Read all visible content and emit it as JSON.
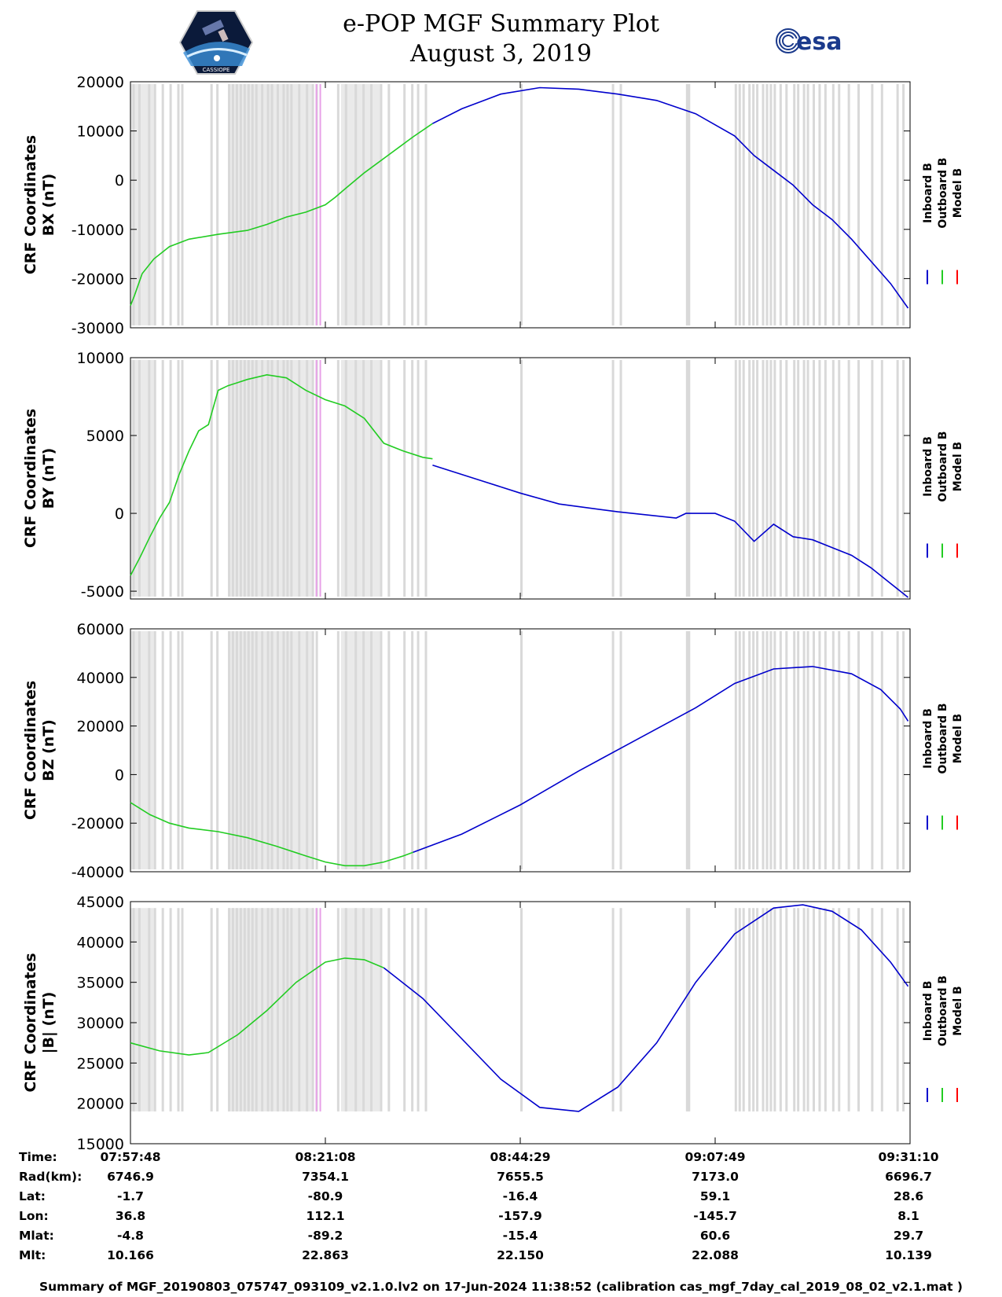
{
  "header": {
    "title_line1": "e-POP MGF Summary Plot",
    "title_line2": "August 3, 2019",
    "logo_left": "CASSIOPE",
    "logo_right": "esa"
  },
  "colors": {
    "inboard": "#0000cc",
    "outboard": "#22cc22",
    "model": "#ff0000",
    "gap": "#d9d9d9",
    "gap_magenta": "#e8a0e8"
  },
  "chart_data": [
    {
      "type": "line",
      "title": "",
      "ylabel_line1": "CRF Coordinates",
      "ylabel_line2": "BX (nT)",
      "ylim": [
        -30000,
        20000
      ],
      "yticks": [
        "20000",
        "10000",
        "0",
        "-10000",
        "-20000",
        "-30000"
      ],
      "yticks_values": [
        20000,
        10000,
        0,
        -10000,
        -20000,
        -30000
      ],
      "legend": [
        "Inboard B",
        "Outboard B",
        "Model B"
      ],
      "series": [
        {
          "name": "Outboard B",
          "x": [
            0,
            0.02,
            0.06,
            0.12,
            0.2,
            0.3,
            0.45,
            0.6,
            0.7,
            0.8,
            0.9,
            1.0,
            1.05,
            1.1,
            1.2,
            1.32,
            1.45,
            1.55
          ],
          "y": [
            -25500,
            -23500,
            -19000,
            -16000,
            -13500,
            -12000,
            -11000,
            -10200,
            -9000,
            -7500,
            -6500,
            -5000,
            -3500,
            -1800,
            1500,
            5000,
            8800,
            11500
          ]
        },
        {
          "name": "Inboard B",
          "x": [
            1.55,
            1.7,
            1.9,
            2.1,
            2.3,
            2.5,
            2.7,
            2.9,
            3.1,
            3.2,
            3.3,
            3.4,
            3.5,
            3.6,
            3.7,
            3.8,
            3.9,
            3.99
          ],
          "y": [
            11500,
            14500,
            17500,
            18800,
            18500,
            17500,
            16200,
            13500,
            9000,
            5000,
            2000,
            -1000,
            -5000,
            -8000,
            -12000,
            -16500,
            -21000,
            -26000
          ]
        }
      ]
    },
    {
      "type": "line",
      "ylabel_line1": "CRF Coordinates",
      "ylabel_line2": "BY (nT)",
      "ylim": [
        -5500,
        10000
      ],
      "yticks": [
        "10000",
        "5000",
        "0",
        "-5000"
      ],
      "yticks_values": [
        10000,
        5000,
        0,
        -5000
      ],
      "legend": [
        "Inboard B",
        "Outboard B",
        "Model B"
      ],
      "series": [
        {
          "name": "Outboard B",
          "x": [
            0,
            0.05,
            0.1,
            0.15,
            0.2,
            0.25,
            0.3,
            0.35,
            0.4,
            0.45,
            0.5,
            0.55,
            0.6,
            0.7,
            0.8,
            0.9,
            1.0,
            1.1,
            1.2,
            1.3,
            1.4,
            1.5,
            1.55
          ],
          "y": [
            -4000,
            -2800,
            -1500,
            -300,
            700,
            2500,
            4000,
            5300,
            5700,
            7900,
            8200,
            8400,
            8600,
            8900,
            8700,
            7900,
            7300,
            6900,
            6100,
            4500,
            4000,
            3600,
            3500
          ]
        },
        {
          "name": "Inboard B",
          "x": [
            1.55,
            1.8,
            2.0,
            2.2,
            2.5,
            2.8,
            2.85,
            3.0,
            3.1,
            3.2,
            3.3,
            3.4,
            3.5,
            3.6,
            3.7,
            3.8,
            3.9,
            3.99
          ],
          "y": [
            3100,
            2100,
            1300,
            600,
            100,
            -300,
            0,
            0,
            -500,
            -1800,
            -700,
            -1500,
            -1700,
            -2200,
            -2700,
            -3500,
            -4500,
            -5400
          ]
        }
      ]
    },
    {
      "type": "line",
      "ylabel_line1": "CRF Coordinates",
      "ylabel_line2": "BZ (nT)",
      "ylim": [
        -40000,
        60000
      ],
      "yticks": [
        "60000",
        "40000",
        "20000",
        "0",
        "-20000",
        "-40000"
      ],
      "yticks_values": [
        60000,
        40000,
        20000,
        0,
        -20000,
        -40000
      ],
      "legend": [
        "Inboard B",
        "Outboard B",
        "Model B"
      ],
      "series": [
        {
          "name": "Outboard B",
          "x": [
            0,
            0.1,
            0.2,
            0.3,
            0.45,
            0.6,
            0.75,
            0.9,
            1.0,
            1.1,
            1.2,
            1.3,
            1.4,
            1.45
          ],
          "y": [
            -11500,
            -16500,
            -20000,
            -22000,
            -23500,
            -26000,
            -29500,
            -33500,
            -36000,
            -37500,
            -37500,
            -36000,
            -33500,
            -32000
          ]
        },
        {
          "name": "Inboard B",
          "x": [
            1.45,
            1.7,
            2.0,
            2.3,
            2.6,
            2.9,
            3.1,
            3.3,
            3.5,
            3.7,
            3.85,
            3.95,
            3.99
          ],
          "y": [
            -32000,
            -24500,
            -12500,
            1500,
            14500,
            27500,
            37500,
            43500,
            44500,
            41500,
            35000,
            27000,
            22000
          ]
        }
      ]
    },
    {
      "type": "line",
      "ylabel_line1": "CRF Coordinates",
      "ylabel_line2": "|B| (nT)",
      "ylim": [
        15000,
        45000
      ],
      "yticks": [
        "45000",
        "40000",
        "35000",
        "30000",
        "25000",
        "20000",
        "15000"
      ],
      "yticks_values": [
        45000,
        40000,
        35000,
        30000,
        25000,
        20000,
        15000
      ],
      "legend": [
        "Inboard B",
        "Outboard B",
        "Model B"
      ],
      "series": [
        {
          "name": "Outboard B",
          "x": [
            0,
            0.15,
            0.3,
            0.4,
            0.55,
            0.7,
            0.85,
            1.0,
            1.1,
            1.2,
            1.3
          ],
          "y": [
            27500,
            26500,
            26000,
            26300,
            28500,
            31500,
            35000,
            37500,
            38000,
            37800,
            36800
          ]
        },
        {
          "name": "Inboard B",
          "x": [
            1.3,
            1.5,
            1.7,
            1.9,
            2.1,
            2.3,
            2.5,
            2.7,
            2.9,
            3.1,
            3.3,
            3.45,
            3.6,
            3.75,
            3.9,
            3.99
          ],
          "y": [
            36800,
            33000,
            28000,
            23000,
            19500,
            19000,
            22000,
            27500,
            35000,
            41000,
            44200,
            44600,
            43800,
            41500,
            37500,
            34500
          ]
        }
      ]
    }
  ],
  "xaxis": {
    "ticks": [
      "07:57:48",
      "08:21:08",
      "08:44:29",
      "09:07:49",
      "09:31:10"
    ],
    "ticks_values": [
      0,
      1,
      2,
      3,
      4
    ]
  },
  "gaps": [
    0.01,
    0.04,
    0.09,
    0.12,
    0.16,
    0.2,
    0.24,
    0.26,
    0.41,
    0.44,
    0.5,
    0.52,
    0.54,
    0.56,
    0.58,
    0.6,
    0.62,
    0.64,
    0.67,
    0.7,
    0.72,
    0.75,
    0.78,
    0.8,
    0.82,
    0.86,
    0.9,
    0.93,
    0.95,
    1.06,
    1.1,
    1.15,
    1.19,
    1.23,
    1.28,
    1.32,
    1.4,
    1.44,
    1.47,
    1.51,
    2.0,
    2.47,
    2.51,
    2.85,
    2.86,
    3.1,
    3.12,
    3.14,
    3.17,
    3.19,
    3.21,
    3.24,
    3.26,
    3.28,
    3.3,
    3.33,
    3.36,
    3.4,
    3.42,
    3.45,
    3.47,
    3.5,
    3.53,
    3.56,
    3.6,
    3.63,
    3.68,
    3.73,
    3.8,
    3.85,
    3.93,
    3.96
  ],
  "gap_bands": [
    [
      0.0,
      0.12
    ],
    [
      0.5,
      0.94
    ],
    [
      1.08,
      1.28
    ]
  ],
  "magenta_gaps": [
    0.95,
    0.97
  ],
  "table": {
    "labels": [
      "Time:",
      "Rad(km):",
      "Lat:",
      "Lon:",
      "Mlat:",
      "Mlt:"
    ],
    "columns": [
      [
        "07:57:48",
        "6746.9",
        "-1.7",
        "36.8",
        "-4.8",
        "10.166"
      ],
      [
        "08:21:08",
        "7354.1",
        "-80.9",
        "112.1",
        "-89.2",
        "22.863"
      ],
      [
        "08:44:29",
        "7655.5",
        "-16.4",
        "-157.9",
        "-15.4",
        "22.150"
      ],
      [
        "09:07:49",
        "7173.0",
        "59.1",
        "-145.7",
        "60.6",
        "22.088"
      ],
      [
        "09:31:10",
        "6696.7",
        "28.6",
        "8.1",
        "29.7",
        "10.139"
      ]
    ]
  },
  "footer": "Summary of MGF_20190803_075747_093109_v2.1.0.lv2 on 17-Jun-2024 11:38:52 (calibration cas_mgf_7day_cal_2019_08_02_v2.1.mat )"
}
